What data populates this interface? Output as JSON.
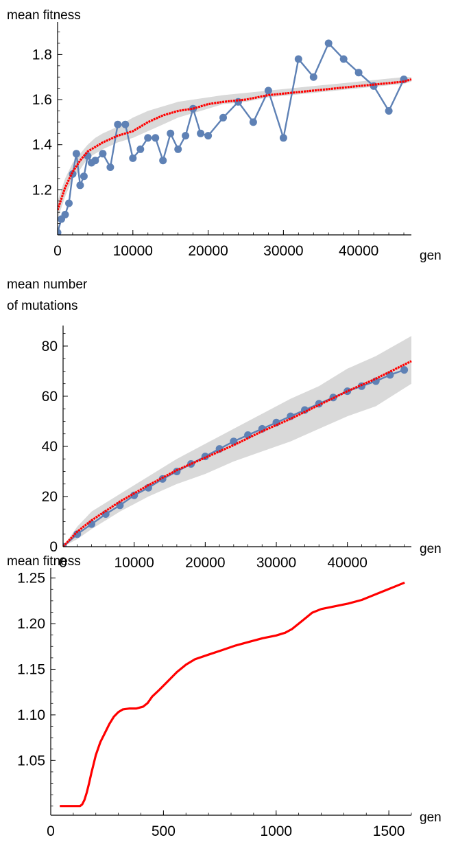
{
  "chart_data": [
    {
      "type": "line",
      "ylabel": "mean fitness",
      "xlabel": "gen",
      "xlim": [
        0,
        47000
      ],
      "ylim": [
        1.0,
        1.92
      ],
      "x_ticks": [
        0,
        10000,
        20000,
        30000,
        40000
      ],
      "x_tick_labels": [
        "0",
        "10000",
        "20000",
        "30000",
        "40000"
      ],
      "y_ticks": [
        1.2,
        1.4,
        1.6,
        1.8
      ],
      "y_tick_labels": [
        "1.2",
        "1.4",
        "1.6",
        "1.8"
      ],
      "colors": {
        "data": "#5e81b5",
        "model": "#ff0000",
        "band": "#d9d9d9"
      },
      "series": [
        {
          "kind": "markers-line",
          "x": [
            0,
            500,
            1000,
            1500,
            2000,
            2500,
            3000,
            3500,
            4000,
            4500,
            5000,
            6000,
            7000,
            8000,
            9000,
            10000,
            11000,
            12000,
            13000,
            14000,
            15000,
            16000,
            17000,
            18000,
            19000,
            20000,
            22000,
            24000,
            26000,
            28000,
            30000,
            32000,
            34000,
            36000,
            38000,
            40000,
            42000,
            44000,
            46000
          ],
          "y": [
            1.01,
            1.07,
            1.09,
            1.14,
            1.27,
            1.36,
            1.22,
            1.26,
            1.35,
            1.32,
            1.33,
            1.36,
            1.3,
            1.49,
            1.49,
            1.34,
            1.38,
            1.43,
            1.43,
            1.33,
            1.45,
            1.38,
            1.44,
            1.56,
            1.45,
            1.44,
            1.52,
            1.59,
            1.5,
            1.64,
            1.43,
            1.78,
            1.7,
            1.85,
            1.78,
            1.72,
            1.66,
            1.55,
            1.69
          ]
        },
        {
          "kind": "model-mean",
          "x": [
            0,
            1000,
            2000,
            3000,
            4000,
            5000,
            6000,
            8000,
            10000,
            12000,
            14000,
            16000,
            18000,
            20000,
            22000,
            25000,
            28000,
            31000,
            34000,
            37000,
            40000,
            43000,
            46000,
            47000
          ],
          "y": [
            1.11,
            1.21,
            1.28,
            1.33,
            1.37,
            1.39,
            1.41,
            1.44,
            1.46,
            1.5,
            1.53,
            1.55,
            1.56,
            1.58,
            1.59,
            1.6,
            1.62,
            1.63,
            1.64,
            1.65,
            1.66,
            1.67,
            1.68,
            1.69
          ],
          "band_low": [
            1.07,
            1.17,
            1.25,
            1.29,
            1.34,
            1.36,
            1.38,
            1.41,
            1.43,
            1.46,
            1.49,
            1.52,
            1.54,
            1.56,
            1.58,
            1.59,
            1.61,
            1.62,
            1.63,
            1.64,
            1.65,
            1.66,
            1.67,
            1.68
          ],
          "band_high": [
            1.15,
            1.25,
            1.32,
            1.36,
            1.4,
            1.43,
            1.45,
            1.48,
            1.52,
            1.55,
            1.57,
            1.59,
            1.6,
            1.61,
            1.62,
            1.63,
            1.64,
            1.65,
            1.66,
            1.67,
            1.68,
            1.69,
            1.7,
            1.7
          ]
        }
      ]
    },
    {
      "type": "line",
      "ylabel": "mean number\n of mutations",
      "xlabel": "gen",
      "xlim": [
        0,
        49000
      ],
      "ylim": [
        0,
        86
      ],
      "x_ticks": [
        0,
        10000,
        20000,
        30000,
        40000
      ],
      "x_tick_labels": [
        "0",
        "10000",
        "20000",
        "30000",
        "40000"
      ],
      "y_ticks": [
        0,
        20,
        40,
        60,
        80
      ],
      "y_tick_labels": [
        "0",
        "20",
        "40",
        "60",
        "80"
      ],
      "colors": {
        "data": "#5e81b5",
        "model": "#ff0000",
        "band": "#d9d9d9"
      },
      "series": [
        {
          "kind": "markers-line",
          "x": [
            0,
            2000,
            4000,
            6000,
            8000,
            10000,
            12000,
            14000,
            16000,
            18000,
            20000,
            22000,
            24000,
            26000,
            28000,
            30000,
            32000,
            34000,
            36000,
            38000,
            40000,
            42000,
            44000,
            46000,
            48000
          ],
          "y": [
            0,
            5,
            9,
            13,
            16.5,
            20.5,
            23.5,
            27,
            30,
            33,
            36,
            39,
            42,
            44.5,
            47,
            49.5,
            52,
            54.5,
            57,
            59.5,
            62,
            64,
            66,
            68.5,
            70.5
          ]
        },
        {
          "kind": "model-mean",
          "x": [
            0,
            2000,
            4000,
            8000,
            12000,
            16000,
            20000,
            24000,
            28000,
            32000,
            36000,
            40000,
            44000,
            49000
          ],
          "y": [
            0,
            6,
            10.5,
            18,
            24.5,
            30.5,
            35.5,
            40.5,
            46,
            51,
            56.5,
            62,
            67,
            74
          ],
          "band_low": [
            0,
            3,
            7,
            14,
            20,
            25,
            29,
            34,
            38,
            42,
            47,
            52,
            56,
            65
          ],
          "band_high": [
            0,
            8,
            14,
            21,
            28,
            35,
            41,
            47,
            53,
            59,
            64,
            71,
            76,
            84
          ]
        }
      ]
    },
    {
      "type": "line",
      "ylabel": "mean fitness",
      "xlabel": "gen",
      "xlim": [
        0,
        1600
      ],
      "ylim": [
        0.99,
        1.255
      ],
      "x_ticks": [
        0,
        500,
        1000,
        1500
      ],
      "x_tick_labels": [
        "0",
        "500",
        "1000",
        "1500"
      ],
      "y_ticks": [
        1.05,
        1.1,
        1.15,
        1.2,
        1.25
      ],
      "y_tick_labels": [
        "1.05",
        "1.10",
        "1.15",
        "1.20",
        "1.25"
      ],
      "colors": {
        "model": "#ff0000"
      },
      "series": [
        {
          "kind": "model-mean",
          "x": [
            40,
            100,
            130,
            140,
            150,
            160,
            170,
            180,
            190,
            200,
            220,
            240,
            260,
            280,
            300,
            320,
            350,
            380,
            410,
            430,
            450,
            480,
            520,
            560,
            600,
            640,
            700,
            760,
            820,
            880,
            940,
            1000,
            1040,
            1070,
            1100,
            1130,
            1160,
            1200,
            1260,
            1320,
            1380,
            1420,
            1460,
            1500,
            1540,
            1570
          ],
          "y": [
            1.0,
            1.0,
            1.0,
            1.002,
            1.007,
            1.015,
            1.025,
            1.036,
            1.046,
            1.056,
            1.07,
            1.08,
            1.09,
            1.098,
            1.103,
            1.106,
            1.107,
            1.107,
            1.109,
            1.113,
            1.12,
            1.127,
            1.137,
            1.147,
            1.155,
            1.161,
            1.166,
            1.171,
            1.176,
            1.18,
            1.184,
            1.187,
            1.19,
            1.194,
            1.2,
            1.206,
            1.212,
            1.216,
            1.219,
            1.222,
            1.226,
            1.23,
            1.234,
            1.238,
            1.242,
            1.245
          ]
        }
      ]
    }
  ]
}
